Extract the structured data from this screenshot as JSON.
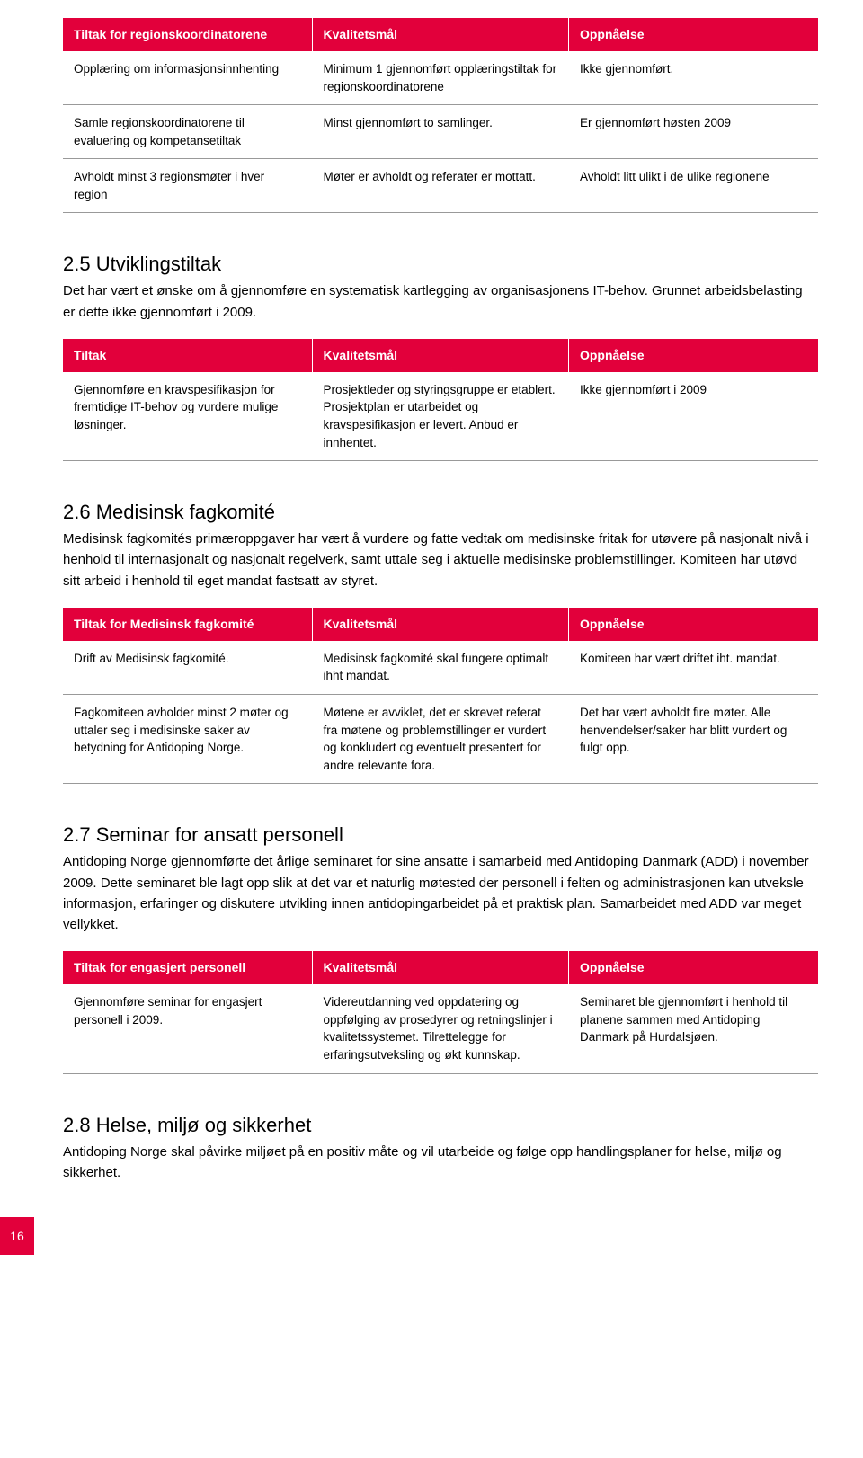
{
  "colors": {
    "accent": "#e2003b",
    "header_text": "#ffffff",
    "body_text": "#000000",
    "row_border": "#999999",
    "background": "#ffffff"
  },
  "table1": {
    "headers": [
      "Tiltak for regionskoordinatorene",
      "Kvalitetsmål",
      "Oppnåelse"
    ],
    "rows": [
      [
        "Opplæring om informasjonsinnhenting",
        "Minimum 1 gjennomført opplæringstiltak for regionskoordinatorene",
        "Ikke gjennomført."
      ],
      [
        "Samle regionskoordinatorene til evaluering og kompetansetiltak",
        "Minst gjennomført to samlinger.",
        "Er gjennomført høsten 2009"
      ],
      [
        "Avholdt minst 3 regionsmøter i hver region",
        "Møter er avholdt og referater er mottatt.",
        "Avholdt litt ulikt i de ulike regionene"
      ]
    ]
  },
  "section25": {
    "heading": "2.5 Utviklingstiltak",
    "body": "Det har vært et ønske om å gjennomføre en systematisk kartlegging av organisasjonens IT-behov. Grunnet arbeidsbelasting er dette ikke gjennomført i 2009."
  },
  "table2": {
    "headers": [
      "Tiltak",
      "Kvalitetsmål",
      "Oppnåelse"
    ],
    "rows": [
      [
        "Gjennomføre en kravspesifikasjon for fremtidige IT-behov og vurdere mulige løsninger.",
        "Prosjektleder og styringsgruppe er etablert. Prosjektplan er utarbeidet og kravspesifikasjon er levert. Anbud er innhentet.",
        "Ikke gjennomført i 2009"
      ]
    ]
  },
  "section26": {
    "heading": "2.6 Medisinsk fagkomité",
    "body": "Medisinsk fagkomités primæroppgaver har vært å vurdere og fatte vedtak om medisinske fritak for utøvere på nasjonalt nivå i henhold til internasjonalt og nasjonalt regelverk, samt uttale seg i aktuelle medisinske problemstillinger. Komiteen har utøvd sitt arbeid i henhold til eget mandat fastsatt av styret."
  },
  "table3": {
    "headers": [
      "Tiltak for Medisinsk fagkomité",
      "Kvalitetsmål",
      "Oppnåelse"
    ],
    "rows": [
      [
        "Drift av Medisinsk fagkomité.",
        "Medisinsk fagkomité skal fungere optimalt ihht mandat.",
        "Komiteen har vært driftet iht. mandat."
      ],
      [
        "Fagkomiteen avholder minst 2 møter og uttaler seg i medisinske saker av betydning for Antidoping Norge.",
        "Møtene er avviklet, det er skrevet referat fra møtene og problemstillinger er vurdert og konkludert og eventuelt presentert for andre relevante fora.",
        "Det har vært avholdt fire møter. Alle henvendelser/saker har blitt vurdert og fulgt opp."
      ]
    ]
  },
  "section27": {
    "heading": "2.7 Seminar for ansatt personell",
    "body": "Antidoping Norge gjennomførte det årlige seminaret for sine ansatte i samarbeid med Antidoping Danmark (ADD) i november 2009. Dette seminaret ble lagt opp slik at det var et naturlig møtested der personell i felten og administrasjonen kan utveksle informasjon, erfaringer og diskutere utvikling innen antidopingarbeidet på et praktisk plan. Samarbeidet med ADD var meget vellykket."
  },
  "table4": {
    "headers": [
      "Tiltak for engasjert personell",
      "Kvalitetsmål",
      "Oppnåelse"
    ],
    "rows": [
      [
        "Gjennomføre seminar for engasjert personell i 2009.",
        "Videreutdanning ved oppdatering og oppfølging av prosedyrer og retningslinjer i kvalitetssystemet. Tilrettelegge for erfaringsutveksling og økt kunnskap.",
        "Seminaret ble gjennomført i henhold til planene sammen med Antidoping Danmark på Hurdalsjøen."
      ]
    ]
  },
  "section28": {
    "heading": "2.8 Helse, miljø og sikkerhet",
    "body": "Antidoping Norge skal påvirke miljøet på en positiv måte og vil utarbeide og følge opp handlingsplaner for helse, miljø og sikkerhet."
  },
  "page_number": "16"
}
